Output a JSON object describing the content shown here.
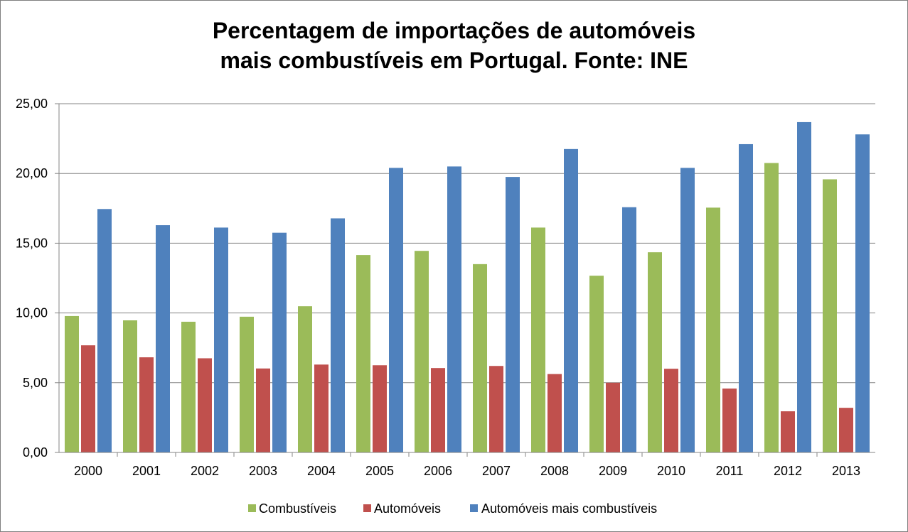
{
  "chart_data": {
    "type": "bar",
    "title": [
      "Percentagem de importações de automóveis",
      "mais combustíveis em Portugal. Fonte: INE"
    ],
    "categories": [
      "2000",
      "2001",
      "2002",
      "2003",
      "2004",
      "2005",
      "2006",
      "2007",
      "2008",
      "2009",
      "2010",
      "2011",
      "2012",
      "2013"
    ],
    "series": [
      {
        "name": "Combustíveis",
        "color": "#9bbb59",
        "values": [
          9.78,
          9.47,
          9.37,
          9.73,
          10.48,
          14.15,
          14.45,
          13.5,
          16.12,
          12.67,
          14.35,
          17.55,
          20.75,
          19.58
        ]
      },
      {
        "name": "Automóveis",
        "color": "#c0504d",
        "values": [
          7.68,
          6.82,
          6.75,
          6.02,
          6.3,
          6.25,
          6.05,
          6.2,
          5.62,
          5.0,
          6.0,
          4.58,
          2.95,
          3.2
        ]
      },
      {
        "name": "Automóveis mais combustíveis",
        "color": "#4f81bd",
        "values": [
          17.45,
          16.29,
          16.12,
          15.75,
          16.78,
          20.4,
          20.5,
          19.75,
          21.75,
          17.58,
          20.4,
          22.1,
          23.68,
          22.8
        ]
      }
    ],
    "y_ticks": [
      "0,00",
      "5,00",
      "10,00",
      "15,00",
      "20,00",
      "25,00"
    ],
    "ylim": [
      0,
      25
    ],
    "grid": true,
    "legend": "bottom",
    "gridline_color": "#868686",
    "axis_color": "#868686"
  }
}
